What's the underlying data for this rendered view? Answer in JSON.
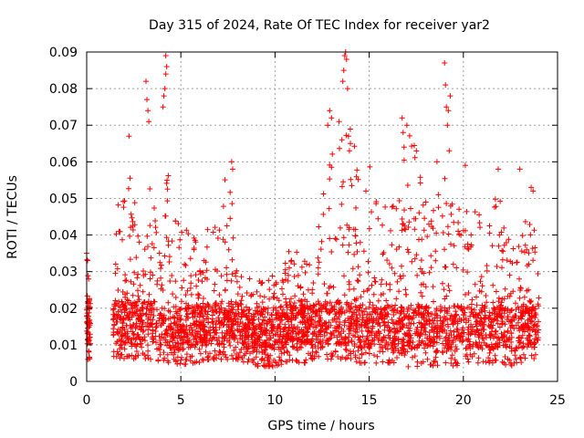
{
  "chart_data": {
    "type": "scatter",
    "title": "Day 315 of 2024, Rate Of TEC Index for receiver yar2",
    "xlabel": "GPS time / hours",
    "ylabel": "ROTI / TECUs",
    "xlim": [
      0,
      25
    ],
    "ylim": [
      0,
      0.09
    ],
    "x_ticks": [
      0,
      5,
      10,
      15,
      20,
      25
    ],
    "x_tick_labels": [
      "0",
      "5",
      "10",
      "15",
      "20",
      "25"
    ],
    "y_ticks": [
      0,
      0.01,
      0.02,
      0.03,
      0.04,
      0.05,
      0.06,
      0.07,
      0.08,
      0.09
    ],
    "y_tick_labels": [
      "0",
      "0.01",
      "0.02",
      "0.03",
      "0.04",
      "0.05",
      "0.06",
      "0.07",
      "0.08",
      "0.09"
    ],
    "grid": true,
    "marker": "+",
    "color": "#ff0000",
    "series": [
      {
        "name": "",
        "envelope": {
          "x": [
            0,
            0.2,
            1.4,
            1.6,
            2.0,
            2.5,
            3.0,
            3.3,
            3.6,
            4.0,
            4.3,
            4.6,
            5.0,
            5.5,
            6.0,
            6.5,
            7.0,
            7.5,
            8.0,
            8.5,
            9.0,
            9.5,
            10.0,
            10.5,
            11.0,
            11.5,
            12.0,
            12.5,
            12.8,
            13.2,
            13.6,
            14.0,
            14.5,
            15.0,
            15.5,
            16.0,
            16.5,
            17.0,
            17.5,
            18.0,
            18.5,
            19.0,
            19.5,
            20.0,
            20.5,
            21.0,
            21.5,
            22.0,
            22.5,
            23.0,
            23.5,
            24.0
          ],
          "y_low": [
            0.006,
            0.006,
            0.007,
            0.006,
            0.006,
            0.006,
            0.006,
            0.006,
            0.006,
            0.005,
            0.005,
            0.005,
            0.004,
            0.005,
            0.005,
            0.006,
            0.006,
            0.006,
            0.006,
            0.005,
            0.004,
            0.004,
            0.004,
            0.005,
            0.005,
            0.005,
            0.005,
            0.005,
            0.006,
            0.006,
            0.006,
            0.006,
            0.005,
            0.005,
            0.005,
            0.005,
            0.005,
            0.004,
            0.004,
            0.005,
            0.004,
            0.005,
            0.004,
            0.005,
            0.005,
            0.005,
            0.005,
            0.005,
            0.004,
            0.005,
            0.006,
            0.006
          ],
          "y_high": [
            0.035,
            0.02,
            0.018,
            0.048,
            0.055,
            0.06,
            0.05,
            0.065,
            0.05,
            0.035,
            0.07,
            0.05,
            0.04,
            0.048,
            0.035,
            0.045,
            0.045,
            0.06,
            0.035,
            0.03,
            0.025,
            0.032,
            0.028,
            0.032,
            0.04,
            0.035,
            0.032,
            0.05,
            0.057,
            0.07,
            0.065,
            0.07,
            0.058,
            0.06,
            0.048,
            0.05,
            0.05,
            0.068,
            0.065,
            0.05,
            0.05,
            0.058,
            0.06,
            0.052,
            0.048,
            0.045,
            0.05,
            0.05,
            0.04,
            0.04,
            0.05,
            0.05
          ]
        },
        "x": [
          0.0,
          0.05,
          0.1,
          0.15,
          3.15,
          3.2,
          3.25,
          3.3,
          4.05,
          4.1,
          4.15,
          4.2,
          4.2,
          4.25,
          2.25,
          7.7,
          7.75,
          12.8,
          12.9,
          13.0,
          13.4,
          13.55,
          13.6,
          13.65,
          13.7,
          13.75,
          13.8,
          13.85,
          13.9,
          13.95,
          14.0,
          16.75,
          16.8,
          16.85,
          17.0,
          18.6,
          19.0,
          19.05,
          19.1,
          19.15,
          19.2,
          19.25,
          19.3,
          20.1,
          21.85,
          23.0,
          23.6,
          23.7
        ],
        "y": [
          0.035,
          0.033,
          0.028,
          0.02,
          0.082,
          0.077,
          0.074,
          0.071,
          0.075,
          0.078,
          0.08,
          0.084,
          0.089,
          0.086,
          0.067,
          0.06,
          0.058,
          0.07,
          0.074,
          0.072,
          0.071,
          0.066,
          0.082,
          0.085,
          0.089,
          0.09,
          0.088,
          0.08,
          0.067,
          0.063,
          0.065,
          0.072,
          0.068,
          0.064,
          0.07,
          0.06,
          0.087,
          0.081,
          0.075,
          0.07,
          0.074,
          0.063,
          0.078,
          0.059,
          0.058,
          0.058,
          0.053,
          0.052
        ]
      }
    ]
  }
}
